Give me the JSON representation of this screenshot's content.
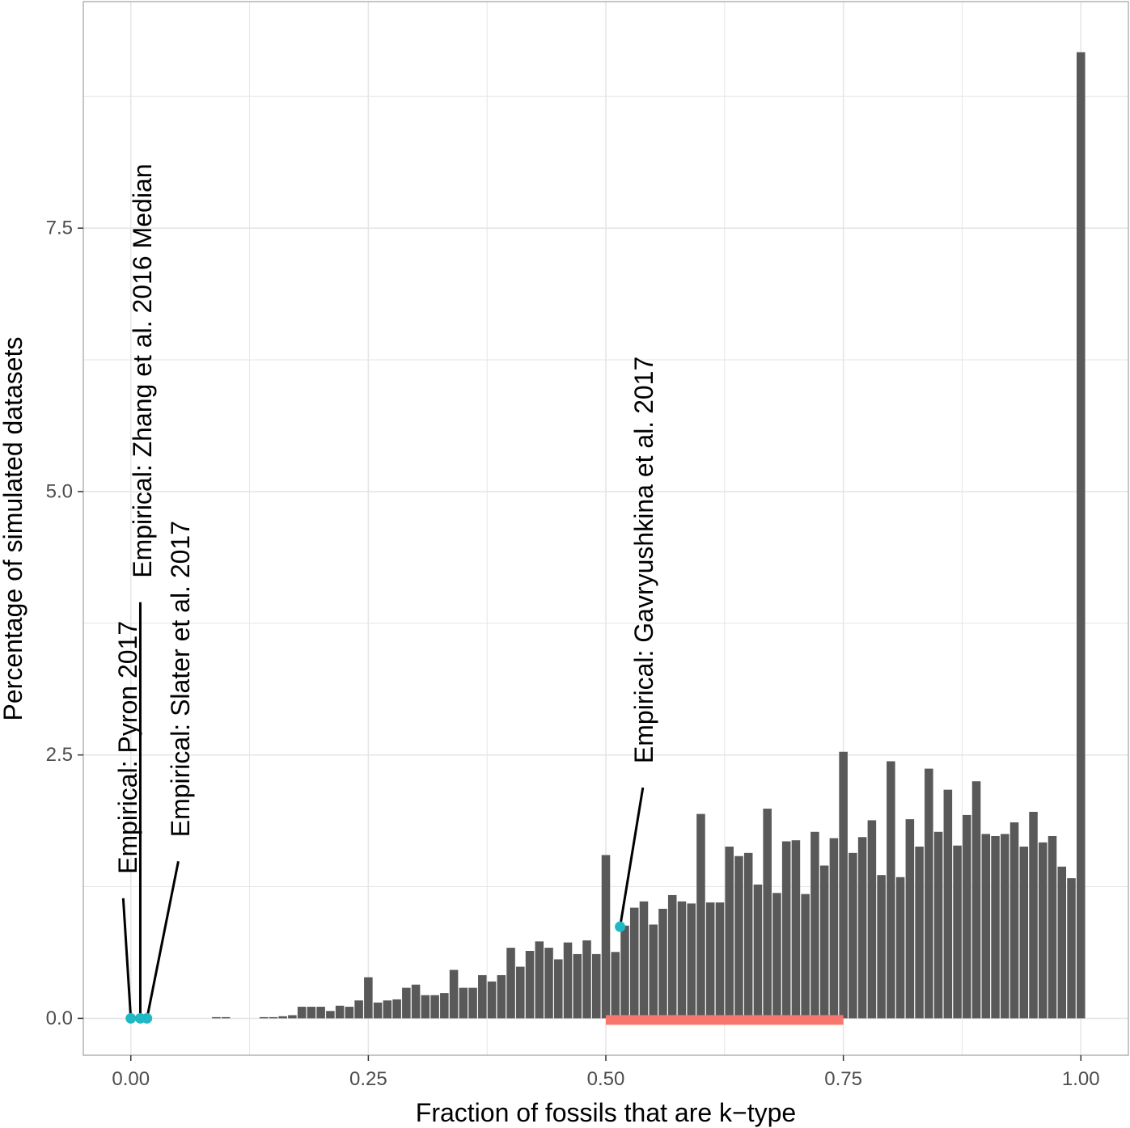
{
  "colors": {
    "bar": "#595959",
    "point": "#20b8c4",
    "range": "#f8766d",
    "grid": "#e6e6e6",
    "panel_border": "#b3b3b3",
    "background": "#ffffff"
  },
  "chart_data": {
    "type": "bar",
    "title": "",
    "xlabel": "Fraction of fossils that are k−type",
    "ylabel": "Percentage of simulated datasets",
    "xlim": [
      -0.05,
      1.05
    ],
    "ylim": [
      -0.35,
      9.65
    ],
    "x_ticks": [
      0.0,
      0.25,
      0.5,
      0.75,
      1.0
    ],
    "x_tick_labels": [
      "0.00",
      "0.25",
      "0.50",
      "0.75",
      "1.00"
    ],
    "y_ticks": [
      0.0,
      2.5,
      5.0,
      7.5
    ],
    "y_tick_labels": [
      "0.0",
      "2.5",
      "5.0",
      "7.5"
    ],
    "grid": true,
    "legend": "none",
    "bin_width": 0.01,
    "bins": [
      {
        "x": 0.09,
        "y": 0.01
      },
      {
        "x": 0.1,
        "y": 0.01
      },
      {
        "x": 0.14,
        "y": 0.01
      },
      {
        "x": 0.15,
        "y": 0.01
      },
      {
        "x": 0.16,
        "y": 0.02
      },
      {
        "x": 0.17,
        "y": 0.03
      },
      {
        "x": 0.18,
        "y": 0.11
      },
      {
        "x": 0.19,
        "y": 0.11
      },
      {
        "x": 0.2,
        "y": 0.11
      },
      {
        "x": 0.21,
        "y": 0.07
      },
      {
        "x": 0.22,
        "y": 0.12
      },
      {
        "x": 0.23,
        "y": 0.11
      },
      {
        "x": 0.24,
        "y": 0.17
      },
      {
        "x": 0.25,
        "y": 0.39
      },
      {
        "x": 0.26,
        "y": 0.15
      },
      {
        "x": 0.27,
        "y": 0.17
      },
      {
        "x": 0.28,
        "y": 0.18
      },
      {
        "x": 0.29,
        "y": 0.29
      },
      {
        "x": 0.3,
        "y": 0.32
      },
      {
        "x": 0.31,
        "y": 0.22
      },
      {
        "x": 0.32,
        "y": 0.22
      },
      {
        "x": 0.33,
        "y": 0.24
      },
      {
        "x": 0.34,
        "y": 0.46
      },
      {
        "x": 0.35,
        "y": 0.29
      },
      {
        "x": 0.36,
        "y": 0.29
      },
      {
        "x": 0.37,
        "y": 0.41
      },
      {
        "x": 0.38,
        "y": 0.35
      },
      {
        "x": 0.39,
        "y": 0.41
      },
      {
        "x": 0.4,
        "y": 0.67
      },
      {
        "x": 0.41,
        "y": 0.49
      },
      {
        "x": 0.42,
        "y": 0.64
      },
      {
        "x": 0.43,
        "y": 0.73
      },
      {
        "x": 0.44,
        "y": 0.67
      },
      {
        "x": 0.45,
        "y": 0.56
      },
      {
        "x": 0.46,
        "y": 0.72
      },
      {
        "x": 0.47,
        "y": 0.61
      },
      {
        "x": 0.48,
        "y": 0.74
      },
      {
        "x": 0.49,
        "y": 0.61
      },
      {
        "x": 0.5,
        "y": 1.55
      },
      {
        "x": 0.51,
        "y": 0.63
      },
      {
        "x": 0.52,
        "y": 0.88
      },
      {
        "x": 0.53,
        "y": 1.05
      },
      {
        "x": 0.54,
        "y": 1.11
      },
      {
        "x": 0.55,
        "y": 0.89
      },
      {
        "x": 0.56,
        "y": 1.04
      },
      {
        "x": 0.57,
        "y": 1.17
      },
      {
        "x": 0.58,
        "y": 1.11
      },
      {
        "x": 0.59,
        "y": 1.09
      },
      {
        "x": 0.6,
        "y": 1.94
      },
      {
        "x": 0.61,
        "y": 1.1
      },
      {
        "x": 0.62,
        "y": 1.1
      },
      {
        "x": 0.63,
        "y": 1.63
      },
      {
        "x": 0.64,
        "y": 1.54
      },
      {
        "x": 0.65,
        "y": 1.57
      },
      {
        "x": 0.66,
        "y": 1.27
      },
      {
        "x": 0.67,
        "y": 1.99
      },
      {
        "x": 0.68,
        "y": 1.19
      },
      {
        "x": 0.69,
        "y": 1.68
      },
      {
        "x": 0.7,
        "y": 1.69
      },
      {
        "x": 0.71,
        "y": 1.18
      },
      {
        "x": 0.72,
        "y": 1.77
      },
      {
        "x": 0.73,
        "y": 1.45
      },
      {
        "x": 0.74,
        "y": 1.71
      },
      {
        "x": 0.75,
        "y": 2.53
      },
      {
        "x": 0.76,
        "y": 1.57
      },
      {
        "x": 0.77,
        "y": 1.72
      },
      {
        "x": 0.78,
        "y": 1.88
      },
      {
        "x": 0.79,
        "y": 1.36
      },
      {
        "x": 0.8,
        "y": 2.44
      },
      {
        "x": 0.81,
        "y": 1.34
      },
      {
        "x": 0.82,
        "y": 1.89
      },
      {
        "x": 0.83,
        "y": 1.63
      },
      {
        "x": 0.84,
        "y": 2.37
      },
      {
        "x": 0.85,
        "y": 1.77
      },
      {
        "x": 0.86,
        "y": 2.17
      },
      {
        "x": 0.87,
        "y": 1.64
      },
      {
        "x": 0.88,
        "y": 1.93
      },
      {
        "x": 0.89,
        "y": 2.25
      },
      {
        "x": 0.9,
        "y": 1.75
      },
      {
        "x": 0.91,
        "y": 1.73
      },
      {
        "x": 0.92,
        "y": 1.75
      },
      {
        "x": 0.93,
        "y": 1.86
      },
      {
        "x": 0.94,
        "y": 1.63
      },
      {
        "x": 0.95,
        "y": 1.96
      },
      {
        "x": 0.96,
        "y": 1.67
      },
      {
        "x": 0.97,
        "y": 1.73
      },
      {
        "x": 0.98,
        "y": 1.44
      },
      {
        "x": 0.99,
        "y": 1.33
      },
      {
        "x": 1.0,
        "y": 9.17
      }
    ],
    "range_band": {
      "x_start": 0.5,
      "x_end": 0.75,
      "y": 0.0
    },
    "empirical_points": [
      {
        "x": 0.0,
        "y": 0.0
      },
      {
        "x": 0.01,
        "y": 0.0
      },
      {
        "x": 0.017,
        "y": 0.0
      },
      {
        "x": 0.515,
        "y": 0.87
      }
    ],
    "annotations": [
      {
        "text": "Empirical: Pyron 2017",
        "x": -0.003,
        "y": 1.37,
        "line_from": [
          -0.008,
          1.14
        ],
        "line_to": [
          0.0,
          0.0
        ]
      },
      {
        "text": "Empirical: Zhang et al. 2016 Median",
        "x": 0.012,
        "y": 4.18,
        "line_from": [
          0.01,
          3.95
        ],
        "line_to": [
          0.01,
          0.0
        ]
      },
      {
        "text": "Empirical: Slater et al. 2017",
        "x": 0.052,
        "y": 1.72,
        "line_from": [
          0.05,
          1.49
        ],
        "line_to": [
          0.017,
          0.0
        ]
      },
      {
        "text": "Empirical: Gavryushkina et al. 2017",
        "x": 0.54,
        "y": 2.42,
        "line_from": [
          0.539,
          2.19
        ],
        "line_to": [
          0.515,
          0.87
        ]
      }
    ]
  }
}
